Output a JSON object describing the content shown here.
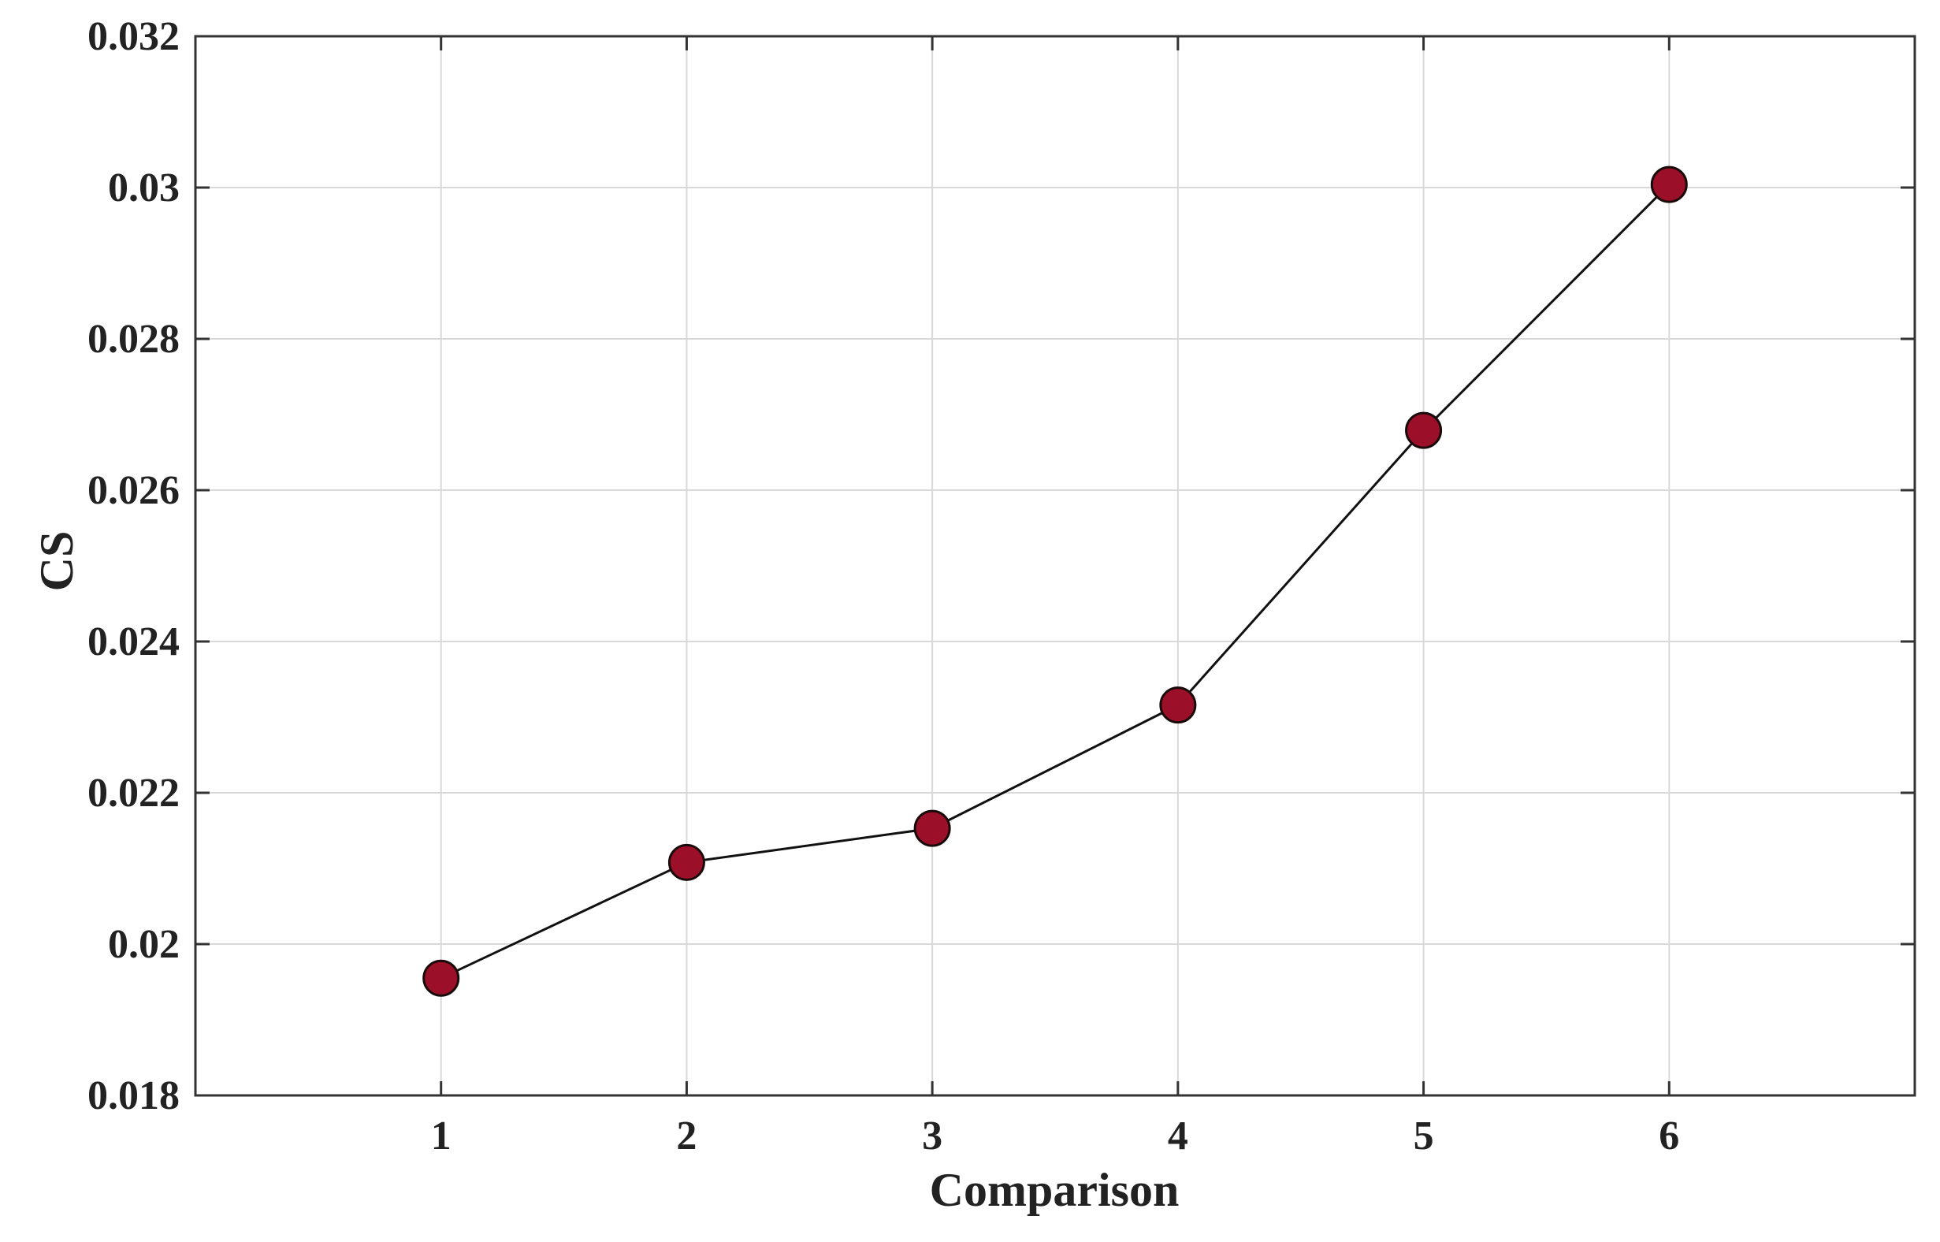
{
  "chart_data": {
    "type": "line",
    "title": "",
    "xlabel": "Comparison",
    "ylabel": "CS",
    "x": [
      1,
      2,
      3,
      4,
      5,
      6
    ],
    "series": [
      {
        "values": [
          0.01955,
          0.02108,
          0.02153,
          0.02316,
          0.02679,
          0.03004
        ],
        "color": "#9b1028",
        "marker": "circle",
        "line_color": "#111111"
      }
    ],
    "xlim": [
      0,
      7
    ],
    "ylim": [
      0.018,
      0.032
    ],
    "xticks": [
      "1",
      "2",
      "3",
      "4",
      "5",
      "6"
    ],
    "yticks": [
      "0.018",
      "0.02",
      "0.022",
      "0.024",
      "0.026",
      "0.028",
      "0.03",
      "0.032"
    ],
    "grid": true,
    "colors": {
      "axis": "#333333",
      "grid": "#d9d9d9",
      "marker_edge": "#1a0a0a"
    }
  }
}
